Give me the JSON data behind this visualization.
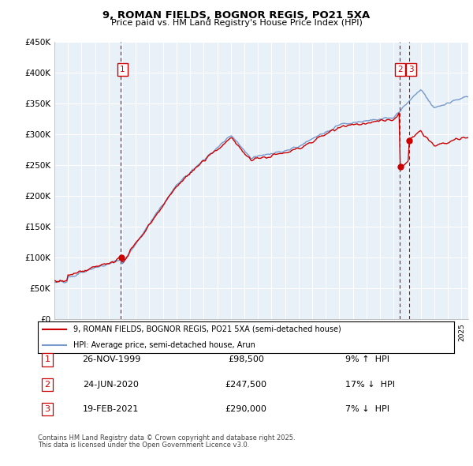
{
  "title": "9, ROMAN FIELDS, BOGNOR REGIS, PO21 5XA",
  "subtitle": "Price paid vs. HM Land Registry's House Price Index (HPI)",
  "legend_label_red": "9, ROMAN FIELDS, BOGNOR REGIS, PO21 5XA (semi-detached house)",
  "legend_label_blue": "HPI: Average price, semi-detached house, Arun",
  "footer1": "Contains HM Land Registry data © Crown copyright and database right 2025.",
  "footer2": "This data is licensed under the Open Government Licence v3.0.",
  "purchases": [
    {
      "num": 1,
      "date": "26-NOV-1999",
      "price": "£98,500",
      "pct": "9%",
      "dir": "↑",
      "year": 1999.9
    },
    {
      "num": 2,
      "date": "24-JUN-2020",
      "price": "£247,500",
      "pct": "17%",
      "dir": "↓",
      "year": 2020.47
    },
    {
      "num": 3,
      "date": "19-FEB-2021",
      "price": "£290,000",
      "pct": "7%",
      "dir": "↓",
      "year": 2021.12
    }
  ],
  "ylim": [
    0,
    450000
  ],
  "yticks": [
    0,
    50000,
    100000,
    150000,
    200000,
    250000,
    300000,
    350000,
    400000,
    450000
  ],
  "ytick_labels": [
    "£0",
    "£50K",
    "£100K",
    "£150K",
    "£200K",
    "£250K",
    "£300K",
    "£350K",
    "£400K",
    "£450K"
  ],
  "color_red": "#cc0000",
  "color_blue": "#7799cc",
  "vline_color": "#cc0000",
  "box_color": "#cc0000",
  "background_color": "#ffffff",
  "grid_color": "#ccddee",
  "xlim": [
    1995,
    2025.5
  ]
}
